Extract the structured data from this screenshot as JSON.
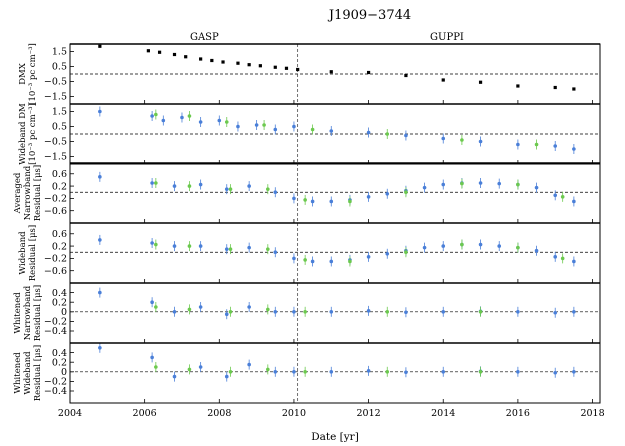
{
  "chart_data": {
    "type": "scatter",
    "title": "J1909−3744",
    "xlabel": "Date [yr]",
    "xlim": [
      2004,
      2018.2
    ],
    "xticks": [
      2004,
      2006,
      2008,
      2010,
      2012,
      2014,
      2016,
      2018
    ],
    "backend_split": 2010.1,
    "backends": [
      {
        "name": "GASP",
        "x": 2007.6
      },
      {
        "name": "GUPPI",
        "x": 2014.1
      }
    ],
    "colors": {
      "narrowband": "#4a7fd8",
      "wideband": "#6cc94e",
      "dmx": "#000000"
    },
    "panels": [
      {
        "id": "dmx",
        "ylabel": [
          "DMX",
          "[10⁻³ pc cm⁻³]"
        ],
        "ylim": [
          -2.0,
          2.0
        ],
        "yticks": [
          -1.5,
          -0.5,
          0.5,
          1.5
        ],
        "zero_line": "dashed",
        "series": [
          {
            "name": "DMX",
            "style": "black-square",
            "x": [
              2004.8,
              2006.1,
              2006.4,
              2006.8,
              2007.1,
              2007.5,
              2007.8,
              2008.1,
              2008.5,
              2008.8,
              2009.1,
              2009.5,
              2009.8,
              2010.1,
              2011.0,
              2012.0,
              2013.0,
              2014.0,
              2015.0,
              2016.0,
              2017.0,
              2017.5
            ],
            "y": [
              1.85,
              1.55,
              1.45,
              1.3,
              1.15,
              1.0,
              0.9,
              0.8,
              0.72,
              0.62,
              0.55,
              0.45,
              0.38,
              0.3,
              0.15,
              0.1,
              -0.1,
              -0.4,
              -0.55,
              -0.8,
              -0.9,
              -1.0
            ]
          }
        ]
      },
      {
        "id": "wideband-dm",
        "ylabel": [
          "Wideband DM",
          "[10⁻³ pc cm⁻³]"
        ],
        "ylim": [
          -2.0,
          2.0
        ],
        "yticks": [
          -1.5,
          -0.5,
          0.5,
          1.5
        ],
        "zero_line": "dashed",
        "series": [
          {
            "name": "Narrowband",
            "style": "blue",
            "x": [
              2004.8,
              2006.2,
              2006.5,
              2007.0,
              2007.5,
              2008.0,
              2008.5,
              2009.0,
              2009.5,
              2010.0,
              2011.0,
              2012.0,
              2013.0,
              2014.0,
              2015.0,
              2016.0,
              2017.0,
              2017.5
            ],
            "y": [
              1.5,
              1.2,
              0.9,
              1.1,
              0.8,
              0.9,
              0.5,
              0.6,
              0.3,
              0.5,
              0.2,
              0.1,
              -0.1,
              -0.3,
              -0.5,
              -0.7,
              -0.8,
              -1.0
            ]
          },
          {
            "name": "Wideband",
            "style": "green",
            "x": [
              2006.3,
              2007.2,
              2008.2,
              2009.2,
              2010.5,
              2012.5,
              2014.5,
              2016.5
            ],
            "y": [
              1.3,
              1.2,
              0.8,
              0.6,
              0.3,
              0.0,
              -0.4,
              -0.7
            ]
          }
        ]
      },
      {
        "id": "avg-narrowband",
        "ylabel": [
          "Averaged",
          "Narrowband",
          "Residual [μs]"
        ],
        "ylim": [
          -1.0,
          0.95
        ],
        "yticks": [
          -0.6,
          -0.2,
          0.2,
          0.6
        ],
        "zero_line": "dashed",
        "series": [
          {
            "name": "Narrowband",
            "style": "blue",
            "x": [
              2004.8,
              2006.2,
              2006.8,
              2007.5,
              2008.2,
              2008.8,
              2009.5,
              2010.0,
              2010.5,
              2011.0,
              2011.5,
              2012.0,
              2012.5,
              2013.0,
              2013.5,
              2014.0,
              2014.5,
              2015.0,
              2015.5,
              2016.0,
              2016.5,
              2017.0,
              2017.5
            ],
            "y": [
              0.5,
              0.3,
              0.2,
              0.25,
              0.1,
              0.2,
              0.0,
              -0.2,
              -0.3,
              -0.3,
              -0.25,
              -0.15,
              -0.05,
              0.05,
              0.15,
              0.25,
              0.3,
              0.3,
              0.28,
              0.25,
              0.15,
              -0.1,
              -0.3
            ]
          },
          {
            "name": "Wideband",
            "style": "green",
            "x": [
              2006.3,
              2007.2,
              2008.3,
              2009.3,
              2010.3,
              2011.5,
              2013.0,
              2014.5,
              2016.0,
              2017.2
            ],
            "y": [
              0.3,
              0.2,
              0.1,
              0.1,
              -0.25,
              -0.3,
              0.0,
              0.28,
              0.25,
              -0.15
            ]
          }
        ]
      },
      {
        "id": "wideband-res",
        "ylabel": [
          "Wideband",
          "Residual [μs]"
        ],
        "ylim": [
          -1.0,
          0.95
        ],
        "yticks": [
          -0.6,
          -0.2,
          0.2,
          0.6
        ],
        "zero_line": "dashed",
        "series": [
          {
            "name": "Narrowband",
            "style": "blue",
            "x": [
              2004.8,
              2006.2,
              2006.8,
              2007.5,
              2008.2,
              2008.8,
              2009.5,
              2010.0,
              2010.5,
              2011.0,
              2011.5,
              2012.0,
              2012.5,
              2013.0,
              2013.5,
              2014.0,
              2014.5,
              2015.0,
              2015.5,
              2016.0,
              2016.5,
              2017.0,
              2017.5
            ],
            "y": [
              0.4,
              0.3,
              0.2,
              0.2,
              0.1,
              0.15,
              0.0,
              -0.2,
              -0.3,
              -0.3,
              -0.25,
              -0.15,
              -0.05,
              0.05,
              0.15,
              0.2,
              0.25,
              0.25,
              0.2,
              0.15,
              0.05,
              -0.15,
              -0.3
            ]
          },
          {
            "name": "Wideband",
            "style": "green",
            "x": [
              2006.3,
              2007.2,
              2008.3,
              2009.3,
              2010.3,
              2011.5,
              2013.0,
              2014.5,
              2016.0,
              2017.2
            ],
            "y": [
              0.25,
              0.2,
              0.1,
              0.1,
              -0.25,
              -0.3,
              0.0,
              0.25,
              0.15,
              -0.2
            ]
          }
        ]
      },
      {
        "id": "whitened-narrowband",
        "ylabel": [
          "Whitened",
          "Narrowband",
          "Residual [μs]"
        ],
        "ylim": [
          -0.65,
          0.6
        ],
        "yticks": [
          -0.4,
          -0.2,
          0.0,
          0.2,
          0.4
        ],
        "zero_line": "dashed",
        "series": [
          {
            "name": "Narrowband",
            "style": "blue",
            "x": [
              2004.8,
              2006.2,
              2006.8,
              2007.5,
              2008.2,
              2008.8,
              2009.5,
              2010.0,
              2011.0,
              2012.0,
              2013.0,
              2014.0,
              2015.0,
              2016.0,
              2017.0,
              2017.5
            ],
            "y": [
              0.4,
              0.2,
              0.0,
              0.1,
              -0.05,
              0.1,
              0.0,
              0.0,
              0.0,
              0.02,
              -0.01,
              0.0,
              0.01,
              0.0,
              -0.02,
              0.0
            ]
          },
          {
            "name": "Wideband",
            "style": "green",
            "x": [
              2006.3,
              2007.2,
              2008.3,
              2009.3,
              2010.3,
              2012.5,
              2015.0
            ],
            "y": [
              0.1,
              0.05,
              0.0,
              0.05,
              0.0,
              0.0,
              0.0
            ]
          }
        ]
      },
      {
        "id": "whitened-wideband",
        "ylabel": [
          "Whitened",
          "Wideband",
          "Residual [μs]"
        ],
        "ylim": [
          -0.65,
          0.6
        ],
        "yticks": [
          -0.4,
          -0.2,
          0.0,
          0.2,
          0.4
        ],
        "zero_line": "dashed",
        "series": [
          {
            "name": "Narrowband",
            "style": "blue",
            "x": [
              2004.8,
              2006.2,
              2006.8,
              2007.5,
              2008.2,
              2008.8,
              2009.5,
              2010.0,
              2011.0,
              2012.0,
              2013.0,
              2014.0,
              2015.0,
              2016.0,
              2017.0,
              2017.5
            ],
            "y": [
              0.5,
              0.3,
              -0.1,
              0.1,
              -0.1,
              0.15,
              0.0,
              0.0,
              0.0,
              0.02,
              -0.01,
              0.0,
              0.01,
              0.0,
              -0.02,
              0.0
            ]
          },
          {
            "name": "Wideband",
            "style": "green",
            "x": [
              2006.3,
              2007.2,
              2008.3,
              2009.3,
              2010.3,
              2012.5,
              2015.0
            ],
            "y": [
              0.1,
              0.05,
              0.0,
              0.05,
              0.0,
              0.0,
              0.0
            ]
          }
        ]
      }
    ]
  }
}
